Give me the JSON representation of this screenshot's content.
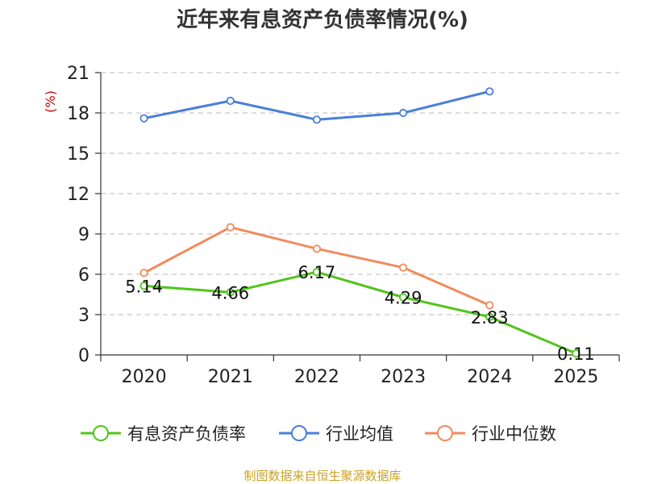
{
  "chart_data": {
    "type": "line",
    "title": "近年来有息资产负债率情况(%)",
    "y_unit_label": "(%)",
    "categories": [
      "2020",
      "2021",
      "2022",
      "2023",
      "2024",
      "2025"
    ],
    "ylim": [
      0,
      21
    ],
    "yticks": [
      0,
      3,
      6,
      9,
      12,
      15,
      18,
      21
    ],
    "grid": true,
    "legend_position": "bottom",
    "series": [
      {
        "name": "有息资产负债率",
        "color": "#52c41a",
        "values": [
          5.14,
          4.66,
          6.17,
          4.29,
          2.83,
          0.11
        ],
        "show_labels": true
      },
      {
        "name": "行业均值",
        "color": "#4a7fd8",
        "values": [
          17.6,
          18.9,
          17.5,
          18.0,
          19.6,
          null
        ],
        "show_labels": false
      },
      {
        "name": "行业中位数",
        "color": "#f28a5b",
        "values": [
          6.1,
          9.5,
          7.9,
          6.5,
          3.7,
          null
        ],
        "show_labels": false
      }
    ],
    "source": "制图数据来自恒生聚源数据库"
  }
}
